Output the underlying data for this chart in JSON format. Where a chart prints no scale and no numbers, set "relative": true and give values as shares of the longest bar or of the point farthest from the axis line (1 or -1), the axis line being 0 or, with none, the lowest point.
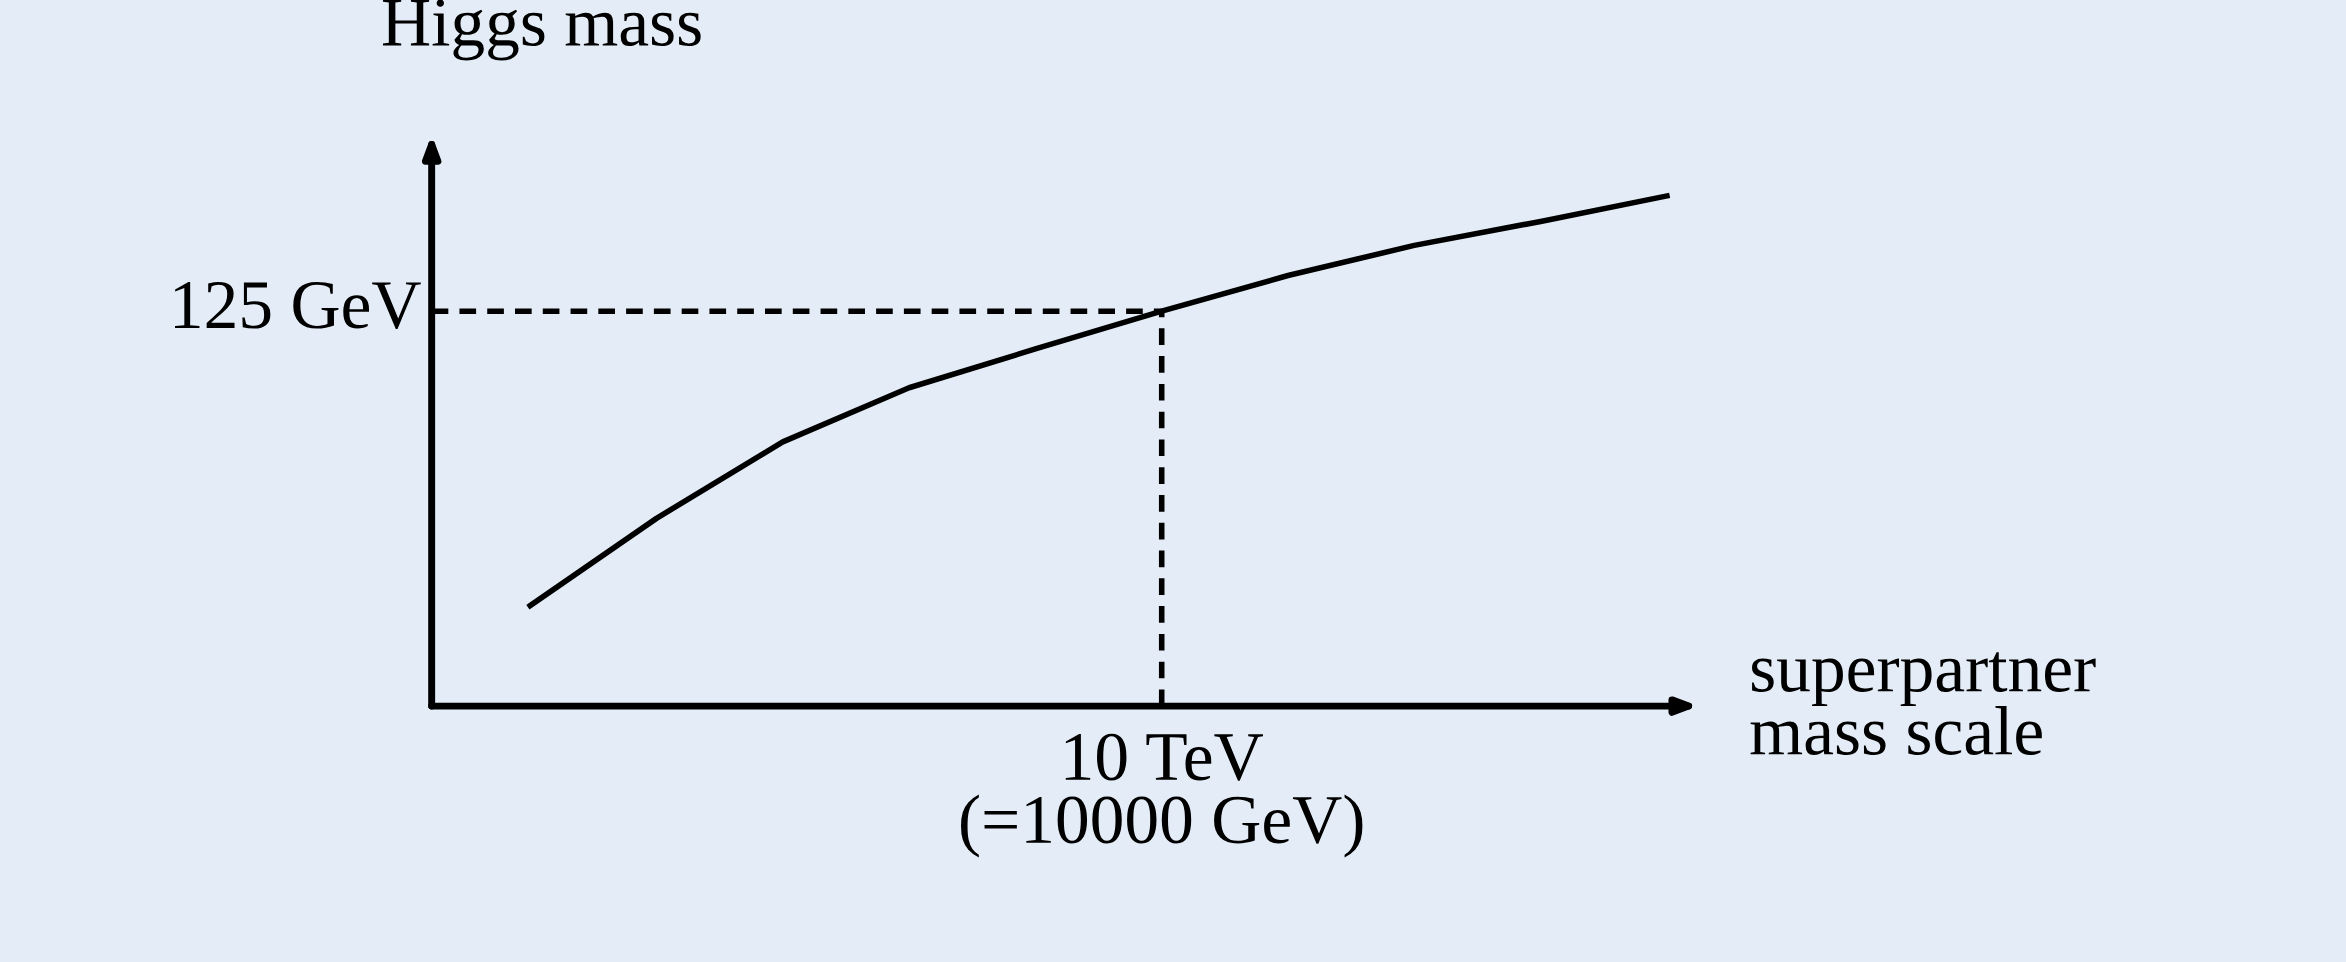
{
  "chart_data": {
    "type": "line",
    "relative": true,
    "xlabel": "superpartner\nmass scale",
    "ylabel": "Higgs mass",
    "categories": [
      null,
      null,
      null,
      null,
      null,
      null,
      null,
      null,
      null,
      null
    ],
    "series": [
      {
        "color": "#000000",
        "values": [
          0.197,
          0.368,
          0.518,
          0.624,
          0.7,
          0.774,
          0.844,
          0.903,
          0.95,
          1.0
        ]
      }
    ],
    "ref_lines": [
      {
        "axis": "y",
        "value": 0.774,
        "label": "125 GeV",
        "line_style": "dashed",
        "color": "#000000"
      }
    ],
    "annotations": [
      "10 TeV\n(=10000 GeV)"
    ],
    "legend": false,
    "marker": "none",
    "line_style": "solid"
  }
}
